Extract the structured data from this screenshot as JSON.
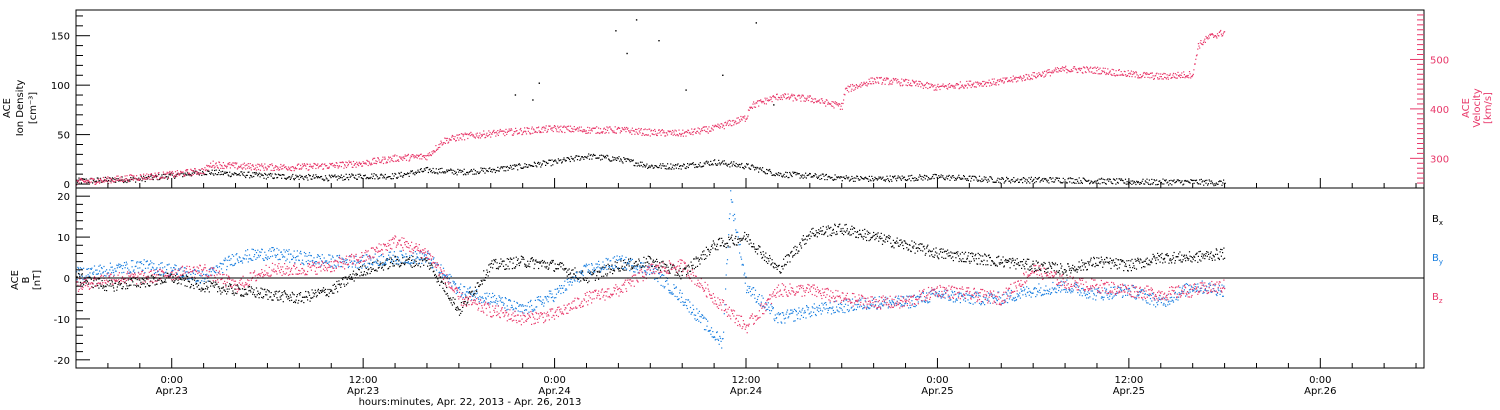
{
  "x_axis": {
    "title": "hours:minutes, Apr. 22, 2013 - Apr. 26, 2013",
    "ticks": [
      {
        "time": "0:00",
        "date": "Apr.23",
        "hours": 24
      },
      {
        "time": "12:00",
        "date": "Apr.23",
        "hours": 36
      },
      {
        "time": "0:00",
        "date": "Apr.24",
        "hours": 48
      },
      {
        "time": "12:00",
        "date": "Apr.24",
        "hours": 60
      },
      {
        "time": "0:00",
        "date": "Apr.25",
        "hours": 72
      },
      {
        "time": "12:00",
        "date": "Apr.25",
        "hours": 84
      },
      {
        "time": "0:00",
        "date": "Apr.26",
        "hours": 96
      }
    ],
    "range_hours_since_apr22": [
      18,
      102.5
    ]
  },
  "colors": {
    "black": "#000000",
    "pink": "#e8386a",
    "blue": "#1a7fe0"
  },
  "chart_data": [
    {
      "type": "scatter",
      "panel": "top",
      "ylabel_left": [
        "ACE",
        "Ion Density",
        "[cm⁻³]"
      ],
      "ylabel_right": [
        "ACE",
        "Velocity",
        "[km/s]"
      ],
      "left_ticks": [
        "0",
        "50",
        "100",
        "150"
      ],
      "right_ticks": [
        "300",
        "400",
        "500"
      ],
      "ylim_left": [
        -4,
        176
      ],
      "ylim_right": [
        240,
        600
      ],
      "series": [
        {
          "axis": "left",
          "color": "#000000",
          "x": [
            18,
            22,
            26,
            30,
            32,
            34,
            36,
            38,
            40,
            42,
            44,
            46,
            48,
            50,
            52,
            54,
            56,
            58,
            60,
            62,
            64,
            66,
            68,
            72,
            76,
            80,
            84,
            88,
            90
          ],
          "y": [
            3,
            5,
            12,
            8,
            7,
            6,
            8,
            8,
            14,
            12,
            14,
            18,
            22,
            28,
            25,
            18,
            18,
            22,
            18,
            10,
            8,
            6,
            5,
            7,
            4,
            4,
            2,
            2,
            1
          ]
        },
        {
          "axis": "right",
          "color": "#e8386a",
          "x": [
            18,
            20,
            22,
            24,
            26,
            26.5,
            28,
            30,
            32,
            34,
            36,
            38,
            40,
            41,
            42,
            44,
            46,
            48,
            50,
            52,
            54,
            56,
            58,
            60,
            60.2,
            62,
            64,
            65,
            66,
            66.2,
            68,
            70,
            72,
            74,
            76,
            78,
            80,
            82,
            84,
            86,
            88,
            88.3,
            89,
            90
          ],
          "y": [
            252,
            256,
            262,
            267,
            275,
            288,
            284,
            282,
            282,
            285,
            290,
            300,
            304,
            335,
            343,
            350,
            355,
            360,
            357,
            357,
            352,
            350,
            360,
            382,
            405,
            425,
            420,
            412,
            405,
            438,
            458,
            453,
            443,
            450,
            455,
            467,
            480,
            478,
            470,
            465,
            470,
            527,
            545,
            555
          ]
        }
      ],
      "spikes": {
        "color": "#000000",
        "x": [
          45.5,
          46.6,
          47,
          51.8,
          52.5,
          53.1,
          54.5,
          56.2,
          58.5,
          60.6,
          61.7
        ],
        "y": [
          90,
          85,
          102,
          155,
          132,
          166,
          145,
          95,
          110,
          163,
          80
        ]
      }
    },
    {
      "type": "scatter",
      "panel": "bottom",
      "ylabel_left": [
        "ACE",
        "B",
        "[nT]"
      ],
      "left_ticks": [
        "-20",
        "-10",
        "0",
        "10",
        "20"
      ],
      "ylim": [
        -22,
        22
      ],
      "series": [
        {
          "name": "Bx",
          "color": "#000000",
          "x": [
            18,
            20,
            22,
            24,
            26,
            28,
            30,
            32,
            34,
            36,
            38,
            40,
            42,
            44,
            46,
            48,
            50,
            52,
            54,
            56,
            58,
            60,
            62,
            64,
            66,
            68,
            70,
            72,
            74,
            76,
            78,
            80,
            82,
            84,
            86,
            88,
            90
          ],
          "y": [
            0,
            -2,
            -1,
            0,
            -2,
            -3,
            -4,
            -5,
            -3,
            2,
            4,
            4,
            -8,
            3,
            4,
            3,
            0,
            3,
            4,
            1,
            8,
            10,
            2,
            11,
            12,
            10,
            8,
            6,
            5,
            4,
            3,
            2,
            4,
            3,
            5,
            5,
            6
          ]
        },
        {
          "name": "By",
          "color": "#1a7fe0",
          "x": [
            18,
            20,
            22,
            24,
            26,
            28,
            30,
            32,
            34,
            36,
            38,
            40,
            42,
            44,
            46,
            48,
            50,
            52,
            54,
            56,
            58,
            58.5,
            59,
            60,
            62,
            64,
            66,
            68,
            70,
            72,
            74,
            76,
            78,
            80,
            82,
            84,
            86,
            88,
            90
          ],
          "y": [
            1,
            2,
            3,
            2,
            0,
            5,
            6,
            5,
            4,
            4,
            5,
            5,
            -3,
            -5,
            -8,
            -4,
            2,
            4,
            2,
            -5,
            -14,
            -16,
            20,
            -2,
            -10,
            -8,
            -7,
            -6,
            -6,
            -4,
            -5,
            -5,
            -3,
            -2,
            -4,
            -3,
            -6,
            -2,
            -3
          ]
        },
        {
          "name": "Bz",
          "color": "#e8386a",
          "x": [
            18,
            20,
            22,
            24,
            26,
            28,
            30,
            32,
            34,
            36,
            38,
            40,
            42,
            44,
            46,
            48,
            50,
            52,
            54,
            56,
            58,
            60,
            62,
            64,
            66,
            68,
            70,
            72,
            74,
            76,
            78,
            80,
            82,
            84,
            86,
            88,
            90
          ],
          "y": [
            -2,
            0,
            0,
            1,
            2,
            -2,
            2,
            2,
            3,
            5,
            9,
            6,
            -5,
            -8,
            -10,
            -9,
            -5,
            -3,
            2,
            3,
            -5,
            -12,
            -3,
            -3,
            -5,
            -6,
            -6,
            -3,
            -4,
            -5,
            2,
            -1,
            -2,
            -3,
            -4,
            -3,
            -2
          ]
        }
      ],
      "legend": {
        "placement": "right",
        "labels": [
          {
            "base": "B",
            "sub": "x",
            "color": "#000000"
          },
          {
            "base": "B",
            "sub": "y",
            "color": "#1a7fe0"
          },
          {
            "base": "B",
            "sub": "z",
            "color": "#e8386a"
          }
        ]
      }
    }
  ]
}
